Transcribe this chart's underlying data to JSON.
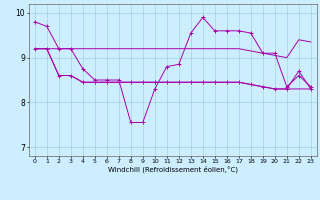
{
  "xlabel": "Windchill (Refroidissement éolien,°C)",
  "background_color": "#cceeff",
  "line_color": "#aa00aa",
  "xlim": [
    -0.5,
    23.5
  ],
  "ylim": [
    6.8,
    10.2
  ],
  "yticks": [
    7,
    8,
    9,
    10
  ],
  "xticks": [
    0,
    1,
    2,
    3,
    4,
    5,
    6,
    7,
    8,
    9,
    10,
    11,
    12,
    13,
    14,
    15,
    16,
    17,
    18,
    19,
    20,
    21,
    22,
    23
  ],
  "series1": [
    9.8,
    9.7,
    9.2,
    9.2,
    8.75,
    8.5,
    8.5,
    8.5,
    7.55,
    7.55,
    8.3,
    8.8,
    8.85,
    9.55,
    9.9,
    9.6,
    9.6,
    9.6,
    9.55,
    9.1,
    9.1,
    8.35,
    8.6,
    8.35
  ],
  "series2": [
    9.2,
    9.2,
    9.2,
    9.2,
    9.2,
    9.2,
    9.2,
    9.2,
    9.2,
    9.2,
    9.2,
    9.2,
    9.2,
    9.2,
    9.2,
    9.2,
    9.2,
    9.2,
    9.15,
    9.1,
    9.05,
    9.0,
    9.4,
    9.35
  ],
  "series3": [
    9.2,
    9.2,
    8.6,
    8.6,
    8.45,
    8.45,
    8.45,
    8.45,
    8.45,
    8.45,
    8.45,
    8.45,
    8.45,
    8.45,
    8.45,
    8.45,
    8.45,
    8.45,
    8.4,
    8.35,
    8.3,
    8.3,
    8.3,
    8.3
  ],
  "series4": [
    9.2,
    9.2,
    8.6,
    8.6,
    8.45,
    8.45,
    8.45,
    8.45,
    8.45,
    8.45,
    8.45,
    8.45,
    8.45,
    8.45,
    8.45,
    8.45,
    8.45,
    8.45,
    8.4,
    8.35,
    8.3,
    8.3,
    8.7,
    8.3
  ]
}
